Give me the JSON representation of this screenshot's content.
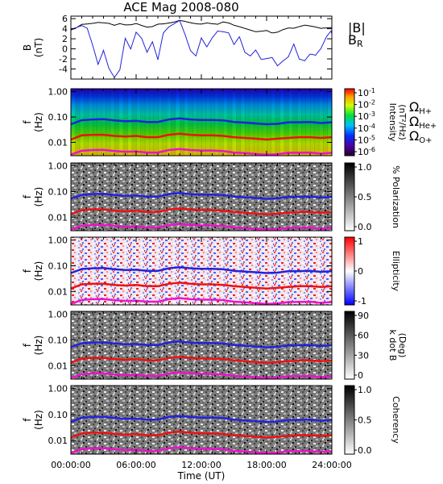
{
  "chart_data": {
    "type": "heatmap",
    "title": "ACE Mag 2008-080",
    "xlabel": "Time (UT)",
    "xticks": [
      "00:00:00",
      "06:00:00",
      "12:00:00",
      "18:00:00",
      "24:00:00"
    ],
    "xlim_hours": [
      0,
      24
    ],
    "panels": [
      {
        "id": "field",
        "type": "line",
        "ylabel": "B",
        "yunit": "(nT)",
        "ylim": [
          -6,
          6.5
        ],
        "yticks": [
          "6",
          "4",
          "2",
          "0",
          "-2",
          "-4"
        ],
        "ytick_values": [
          6,
          4,
          2,
          0,
          -2,
          -4
        ],
        "series": [
          {
            "name": "|B|",
            "color": "#000000",
            "x": [
              0,
              0.5,
              1,
              1.5,
              2,
              2.5,
              3,
              3.5,
              4,
              4.5,
              5,
              5.5,
              6,
              6.5,
              7,
              7.5,
              8,
              8.5,
              9,
              9.5,
              10,
              10.5,
              11,
              11.5,
              12,
              12.5,
              13,
              13.5,
              14,
              14.5,
              15,
              15.5,
              16,
              16.5,
              17,
              17.5,
              18,
              18.5,
              19,
              19.5,
              20,
              20.5,
              21,
              21.5,
              22,
              22.5,
              23,
              23.5,
              24
            ],
            "values": [
              3.6,
              4.2,
              5.0,
              5.2,
              5.4,
              5.6,
              5.5,
              5.3,
              4.8,
              5.0,
              4.6,
              4.5,
              4.7,
              4.3,
              4.0,
              4.2,
              4.8,
              5.0,
              5.3,
              5.6,
              6.0,
              5.8,
              5.5,
              5.2,
              5.0,
              5.1,
              4.8,
              4.6,
              5.0,
              4.8,
              4.4,
              4.2,
              4.0,
              3.8,
              3.6,
              3.8,
              4.0,
              3.5,
              3.6,
              4.0,
              4.2,
              4.0,
              4.2,
              4.4,
              4.2,
              4.0,
              3.8,
              4.0,
              4.2
            ]
          },
          {
            "name": "B_R",
            "label": "B",
            "label_sub": "R",
            "color": "#2222dd",
            "x": [
              0,
              0.5,
              1,
              1.5,
              2,
              2.5,
              3,
              3.5,
              4,
              4.5,
              5,
              5.5,
              6,
              6.5,
              7,
              7.5,
              8,
              8.5,
              9,
              9.5,
              10,
              10.5,
              11,
              11.5,
              12,
              12.5,
              13,
              13.5,
              14,
              14.5,
              15,
              15.5,
              16,
              16.5,
              17,
              17.5,
              18,
              18.5,
              19,
              19.5,
              20,
              20.5,
              21,
              21.5,
              22,
              22.5,
              23,
              23.5,
              24
            ],
            "values": [
              3.0,
              3.5,
              4.2,
              4.0,
              1.0,
              -2.5,
              0.5,
              -3.0,
              -4.8,
              -3.5,
              2.5,
              0.0,
              3.0,
              1.5,
              -1.5,
              0.5,
              -3.0,
              2.5,
              4.0,
              5.0,
              6.0,
              3.5,
              0.5,
              -0.5,
              3.0,
              1.0,
              2.5,
              3.5,
              3.0,
              2.5,
              0.0,
              1.5,
              -1.5,
              -2.0,
              -0.5,
              -2.0,
              -1.5,
              -1.0,
              -2.5,
              -1.5,
              -0.8,
              1.5,
              -1.8,
              -2.5,
              -1.5,
              -2.0,
              -0.8,
              1.5,
              3.0
            ]
          }
        ],
        "legend": "right"
      },
      {
        "id": "intensity",
        "type": "heatmap",
        "ylabel": "f",
        "yunit": "(Hz)",
        "yscale": "log",
        "ylim": [
          0.003,
          1.3
        ],
        "yticks": [
          "1.00",
          "0.10",
          "0.01"
        ],
        "ytick_values": [
          1.0,
          0.1,
          0.01
        ],
        "colorbar": {
          "label": "Intensity",
          "unit": "(nT²/Hz)",
          "colormap": "rainbow",
          "ticks": [
            "10",
            "10",
            "10",
            "10",
            "10",
            "10"
          ],
          "tick_exponents": [
            "-1",
            "-2",
            "-3",
            "-4",
            "-5",
            "-6"
          ]
        },
        "legend": [
          {
            "name": "H+",
            "symbol": "Ω",
            "color": "#2222dd"
          },
          {
            "name": "He+",
            "symbol": "Ω",
            "color": "#ee1111"
          },
          {
            "name": "O+",
            "symbol": "Ω",
            "color": "#ee11cc"
          }
        ]
      },
      {
        "id": "polarization",
        "type": "heatmap",
        "ylabel": "f",
        "yunit": "(Hz)",
        "yscale": "log",
        "ylim": [
          0.003,
          1.3
        ],
        "yticks": [
          "1.00",
          "0.10",
          "0.01"
        ],
        "ytick_values": [
          1.0,
          0.1,
          0.01
        ],
        "colorbar": {
          "label": "% Polarization",
          "colormap": "gray",
          "range": [
            0,
            1
          ],
          "ticks": [
            "1.0",
            "0.5",
            "0.0"
          ]
        }
      },
      {
        "id": "ellipticity",
        "type": "heatmap",
        "ylabel": "f",
        "yunit": "(Hz)",
        "yscale": "log",
        "ylim": [
          0.003,
          1.3
        ],
        "yticks": [
          "1.00",
          "0.10",
          "0.01"
        ],
        "ytick_values": [
          1.0,
          0.1,
          0.01
        ],
        "colorbar": {
          "label": "Ellipticity",
          "colormap": "blue-white-red",
          "range": [
            -1,
            1
          ],
          "ticks": [
            "1",
            "0",
            "-1"
          ]
        }
      },
      {
        "id": "kdotb",
        "type": "heatmap",
        "ylabel": "f",
        "yunit": "(Hz)",
        "yscale": "log",
        "ylim": [
          0.003,
          1.3
        ],
        "yticks": [
          "1.00",
          "0.10",
          "0.01"
        ],
        "ytick_values": [
          1.0,
          0.1,
          0.01
        ],
        "colorbar": {
          "label": "k dot B",
          "unit": "(Deg)",
          "colormap": "gray",
          "range": [
            0,
            90
          ],
          "ticks": [
            "90",
            "60",
            "30",
            "0"
          ]
        }
      },
      {
        "id": "coherency",
        "type": "heatmap",
        "ylabel": "f",
        "yunit": "(Hz)",
        "yscale": "log",
        "ylim": [
          0.003,
          1.3
        ],
        "yticks": [
          "1.00",
          "0.10",
          "0.01"
        ],
        "ytick_values": [
          1.0,
          0.1,
          0.01
        ],
        "colorbar": {
          "label": "Coherency",
          "colormap": "gray",
          "range": [
            0,
            1
          ],
          "ticks": [
            "1.0",
            "0.5",
            "0.0"
          ]
        }
      }
    ],
    "gyrofrequency_lines_hz": {
      "x": [
        0,
        1,
        2,
        3,
        4,
        5,
        6,
        7,
        8,
        9,
        10,
        11,
        12,
        13,
        14,
        15,
        16,
        17,
        18,
        19,
        20,
        21,
        22,
        23,
        24
      ],
      "H+": [
        0.052,
        0.075,
        0.08,
        0.082,
        0.074,
        0.068,
        0.07,
        0.064,
        0.064,
        0.08,
        0.088,
        0.08,
        0.076,
        0.076,
        0.074,
        0.064,
        0.06,
        0.056,
        0.052,
        0.054,
        0.062,
        0.062,
        0.064,
        0.058,
        0.062
      ],
      "He+": [
        0.013,
        0.019,
        0.02,
        0.02,
        0.018,
        0.017,
        0.018,
        0.016,
        0.016,
        0.02,
        0.022,
        0.02,
        0.019,
        0.019,
        0.018,
        0.016,
        0.015,
        0.014,
        0.013,
        0.014,
        0.015,
        0.016,
        0.016,
        0.015,
        0.016
      ],
      "O+": [
        0.0033,
        0.0047,
        0.005,
        0.0051,
        0.0046,
        0.0043,
        0.0044,
        0.004,
        0.004,
        0.005,
        0.0055,
        0.005,
        0.0048,
        0.0048,
        0.0046,
        0.004,
        0.0038,
        0.0035,
        0.0033,
        0.0034,
        0.0039,
        0.0039,
        0.004,
        0.0036,
        0.0039
      ]
    }
  }
}
